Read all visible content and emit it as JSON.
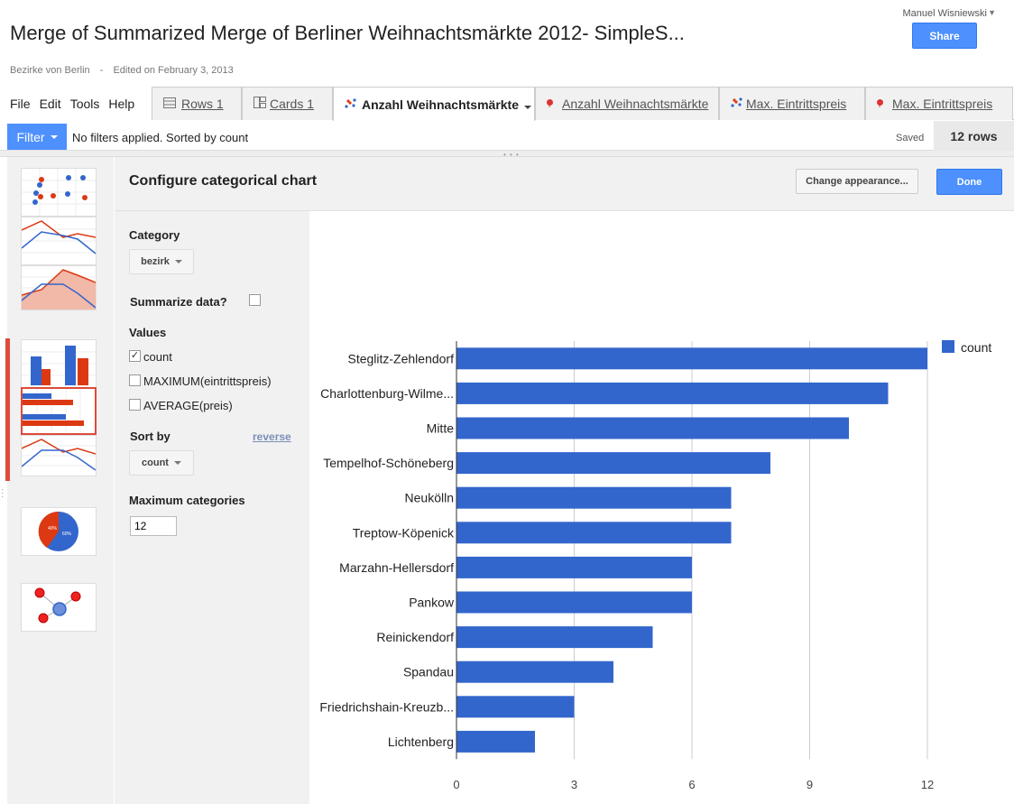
{
  "header": {
    "title": "Merge of Summarized Merge of Berliner Weihnachtsmärkte 2012- SimpleS...",
    "owner": "Bezirke von Berlin",
    "edited": "Edited on February 3, 2013",
    "user": "Manuel Wisniewski",
    "share_label": "Share"
  },
  "menu": [
    "File",
    "Edit",
    "Tools",
    "Help"
  ],
  "tabs": [
    {
      "label": "Rows 1",
      "icon": "rows-icon"
    },
    {
      "label": "Cards 1",
      "icon": "cards-icon"
    },
    {
      "label": "Anzahl Weihnachtsmärkte",
      "icon": "scatter-chart-icon"
    },
    {
      "label": "Anzahl Weihnachtsmärkte",
      "icon": "map-pin-icon"
    },
    {
      "label": "Max. Eintrittspreis",
      "icon": "scatter-chart-icon"
    },
    {
      "label": "Max. Eintrittspreis",
      "icon": "map-pin-icon"
    }
  ],
  "filterbar": {
    "filter_label": "Filter",
    "status": "No filters applied. Sorted by count",
    "saved": "Saved",
    "rows": "12 rows"
  },
  "config": {
    "title": "Configure categorical chart",
    "appearance_label": "Change appearance...",
    "done_label": "Done",
    "category_heading": "Category",
    "category_value": "bezirk",
    "summarize_label": "Summarize data?",
    "values_heading": "Values",
    "values": [
      {
        "label": "count",
        "checked": true
      },
      {
        "label": "MAXIMUM(eintrittspreis)",
        "checked": false
      },
      {
        "label": "AVERAGE(preis)",
        "checked": false
      }
    ],
    "sortby_heading": "Sort by",
    "reverse_label": "reverse",
    "sortby_value": "count",
    "maxcat_heading": "Maximum categories",
    "maxcat_value": "12"
  },
  "colors": {
    "bar": "#3366cc",
    "accent": "#4d90fe",
    "red": "#dc3912"
  },
  "thumb_labels": {
    "pie_a": "40%",
    "pie_b": "60%"
  },
  "chart_data": {
    "type": "bar",
    "orientation": "horizontal",
    "categories": [
      "Steglitz-Zehlendorf",
      "Charlottenburg-Wilme...",
      "Mitte",
      "Tempelhof-Schöneberg",
      "Neukölln",
      "Treptow-Köpenick",
      "Marzahn-Hellersdorf",
      "Pankow",
      "Reinickendorf",
      "Spandau",
      "Friedrichshain-Kreuzb...",
      "Lichtenberg"
    ],
    "series": [
      {
        "name": "count",
        "values": [
          12,
          11,
          10,
          8,
          7,
          7,
          6,
          6,
          5,
          4,
          3,
          2
        ]
      }
    ],
    "xlim": [
      0,
      12
    ],
    "xticks": [
      0,
      3,
      6,
      9,
      12
    ],
    "grid": true,
    "legend": "top-right"
  }
}
